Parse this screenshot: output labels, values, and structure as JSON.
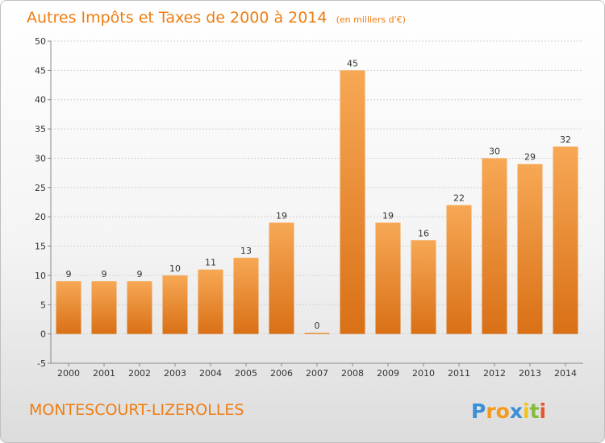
{
  "chart_data": {
    "type": "bar",
    "title": "Autres Impôts et Taxes de 2000 à 2014",
    "subtitle": "(en milliers d'€)",
    "categories": [
      "2000",
      "2001",
      "2002",
      "2003",
      "2004",
      "2005",
      "2006",
      "2007",
      "2008",
      "2009",
      "2010",
      "2011",
      "2012",
      "2013",
      "2014"
    ],
    "values": [
      9,
      9,
      9,
      10,
      11,
      13,
      19,
      0,
      45,
      19,
      16,
      22,
      30,
      29,
      32
    ],
    "ylim": [
      -5,
      50
    ],
    "yticks": [
      -5,
      0,
      5,
      10,
      15,
      20,
      25,
      30,
      35,
      40,
      45,
      50
    ],
    "grid": true,
    "bar_color": "#f07f1a",
    "accent_color": "#ef7d12"
  },
  "commune": "MONTESCOURT-LIZEROLLES",
  "logo": {
    "letters": [
      "P",
      "r",
      "o",
      "x",
      "i",
      "t",
      "i"
    ],
    "colors": [
      "#3a8fd6",
      "#f39a1c",
      "#f39a1c",
      "#3a8fd6",
      "#f5c11b",
      "#84bd3c",
      "#e4572e"
    ]
  }
}
